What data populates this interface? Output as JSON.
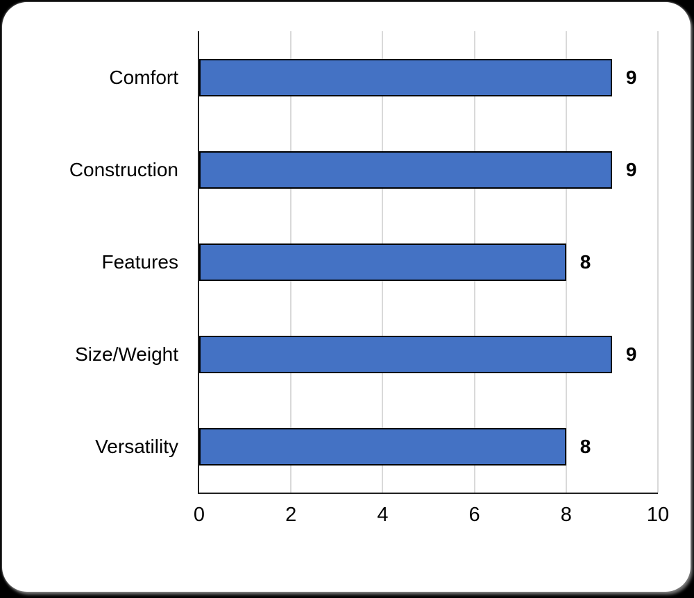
{
  "canvas": {
    "background_color": "#000000",
    "card_color": "#ffffff"
  },
  "chart_data": {
    "type": "bar",
    "orientation": "horizontal",
    "title": "",
    "xlabel": "",
    "ylabel": "",
    "categories": [
      "Comfort",
      "Construction",
      "Features",
      "Size/Weight",
      "Versatility"
    ],
    "values": [
      9,
      9,
      8,
      9,
      8
    ],
    "data_labels": [
      "9",
      "9",
      "8",
      "9",
      "8"
    ],
    "xlim": [
      0,
      10
    ],
    "x_ticks": [
      0,
      2,
      4,
      6,
      8,
      10
    ],
    "grid": "vertical",
    "legend": "none",
    "colors": {
      "bar_fill": "#4472c4",
      "bar_border": "#000000",
      "gridline": "#d9d9d9",
      "axis": "#1f1f1f",
      "text": "#000000"
    }
  }
}
